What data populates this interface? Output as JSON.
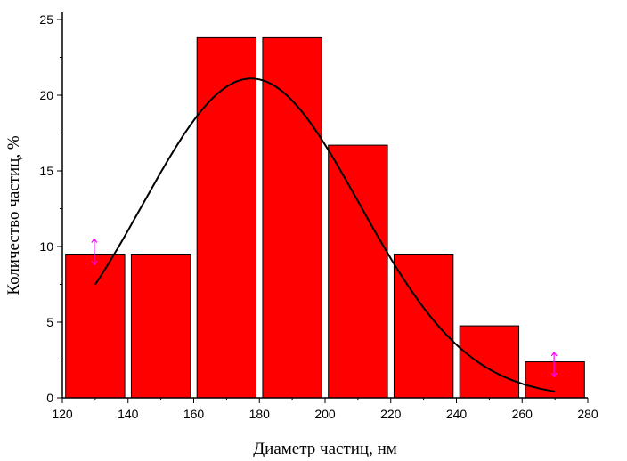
{
  "chart_data": {
    "type": "bar",
    "title": "",
    "xlabel": "Диаметр частиц, нм",
    "ylabel": "Количество частиц, %",
    "xlim": [
      120,
      280
    ],
    "ylim": [
      0,
      25
    ],
    "x_ticks": [
      "120",
      "140",
      "160",
      "180",
      "200",
      "220",
      "240",
      "260",
      "280"
    ],
    "y_ticks": [
      "0",
      "5",
      "10",
      "15",
      "20",
      "25"
    ],
    "bins": [
      {
        "x0": 121,
        "x1": 139,
        "value": 9.5
      },
      {
        "x0": 141,
        "x1": 159,
        "value": 9.5
      },
      {
        "x0": 161,
        "x1": 179,
        "value": 23.8
      },
      {
        "x0": 181,
        "x1": 199,
        "value": 23.8
      },
      {
        "x0": 201,
        "x1": 219,
        "value": 16.7
      },
      {
        "x0": 221,
        "x1": 239,
        "value": 9.5
      },
      {
        "x0": 241,
        "x1": 259,
        "value": 4.76
      },
      {
        "x0": 261,
        "x1": 279,
        "value": 2.38
      }
    ],
    "bar_color": "#ff0000",
    "fit_curve": {
      "type": "gaussian",
      "color": "#000000",
      "x_range": [
        130,
        270
      ],
      "center": 177.5,
      "amplitude": 21.1,
      "sigma": 33,
      "markers_color": "#ff00ff",
      "markers_x": [
        130,
        270
      ]
    },
    "grid": false,
    "legend": "none"
  }
}
